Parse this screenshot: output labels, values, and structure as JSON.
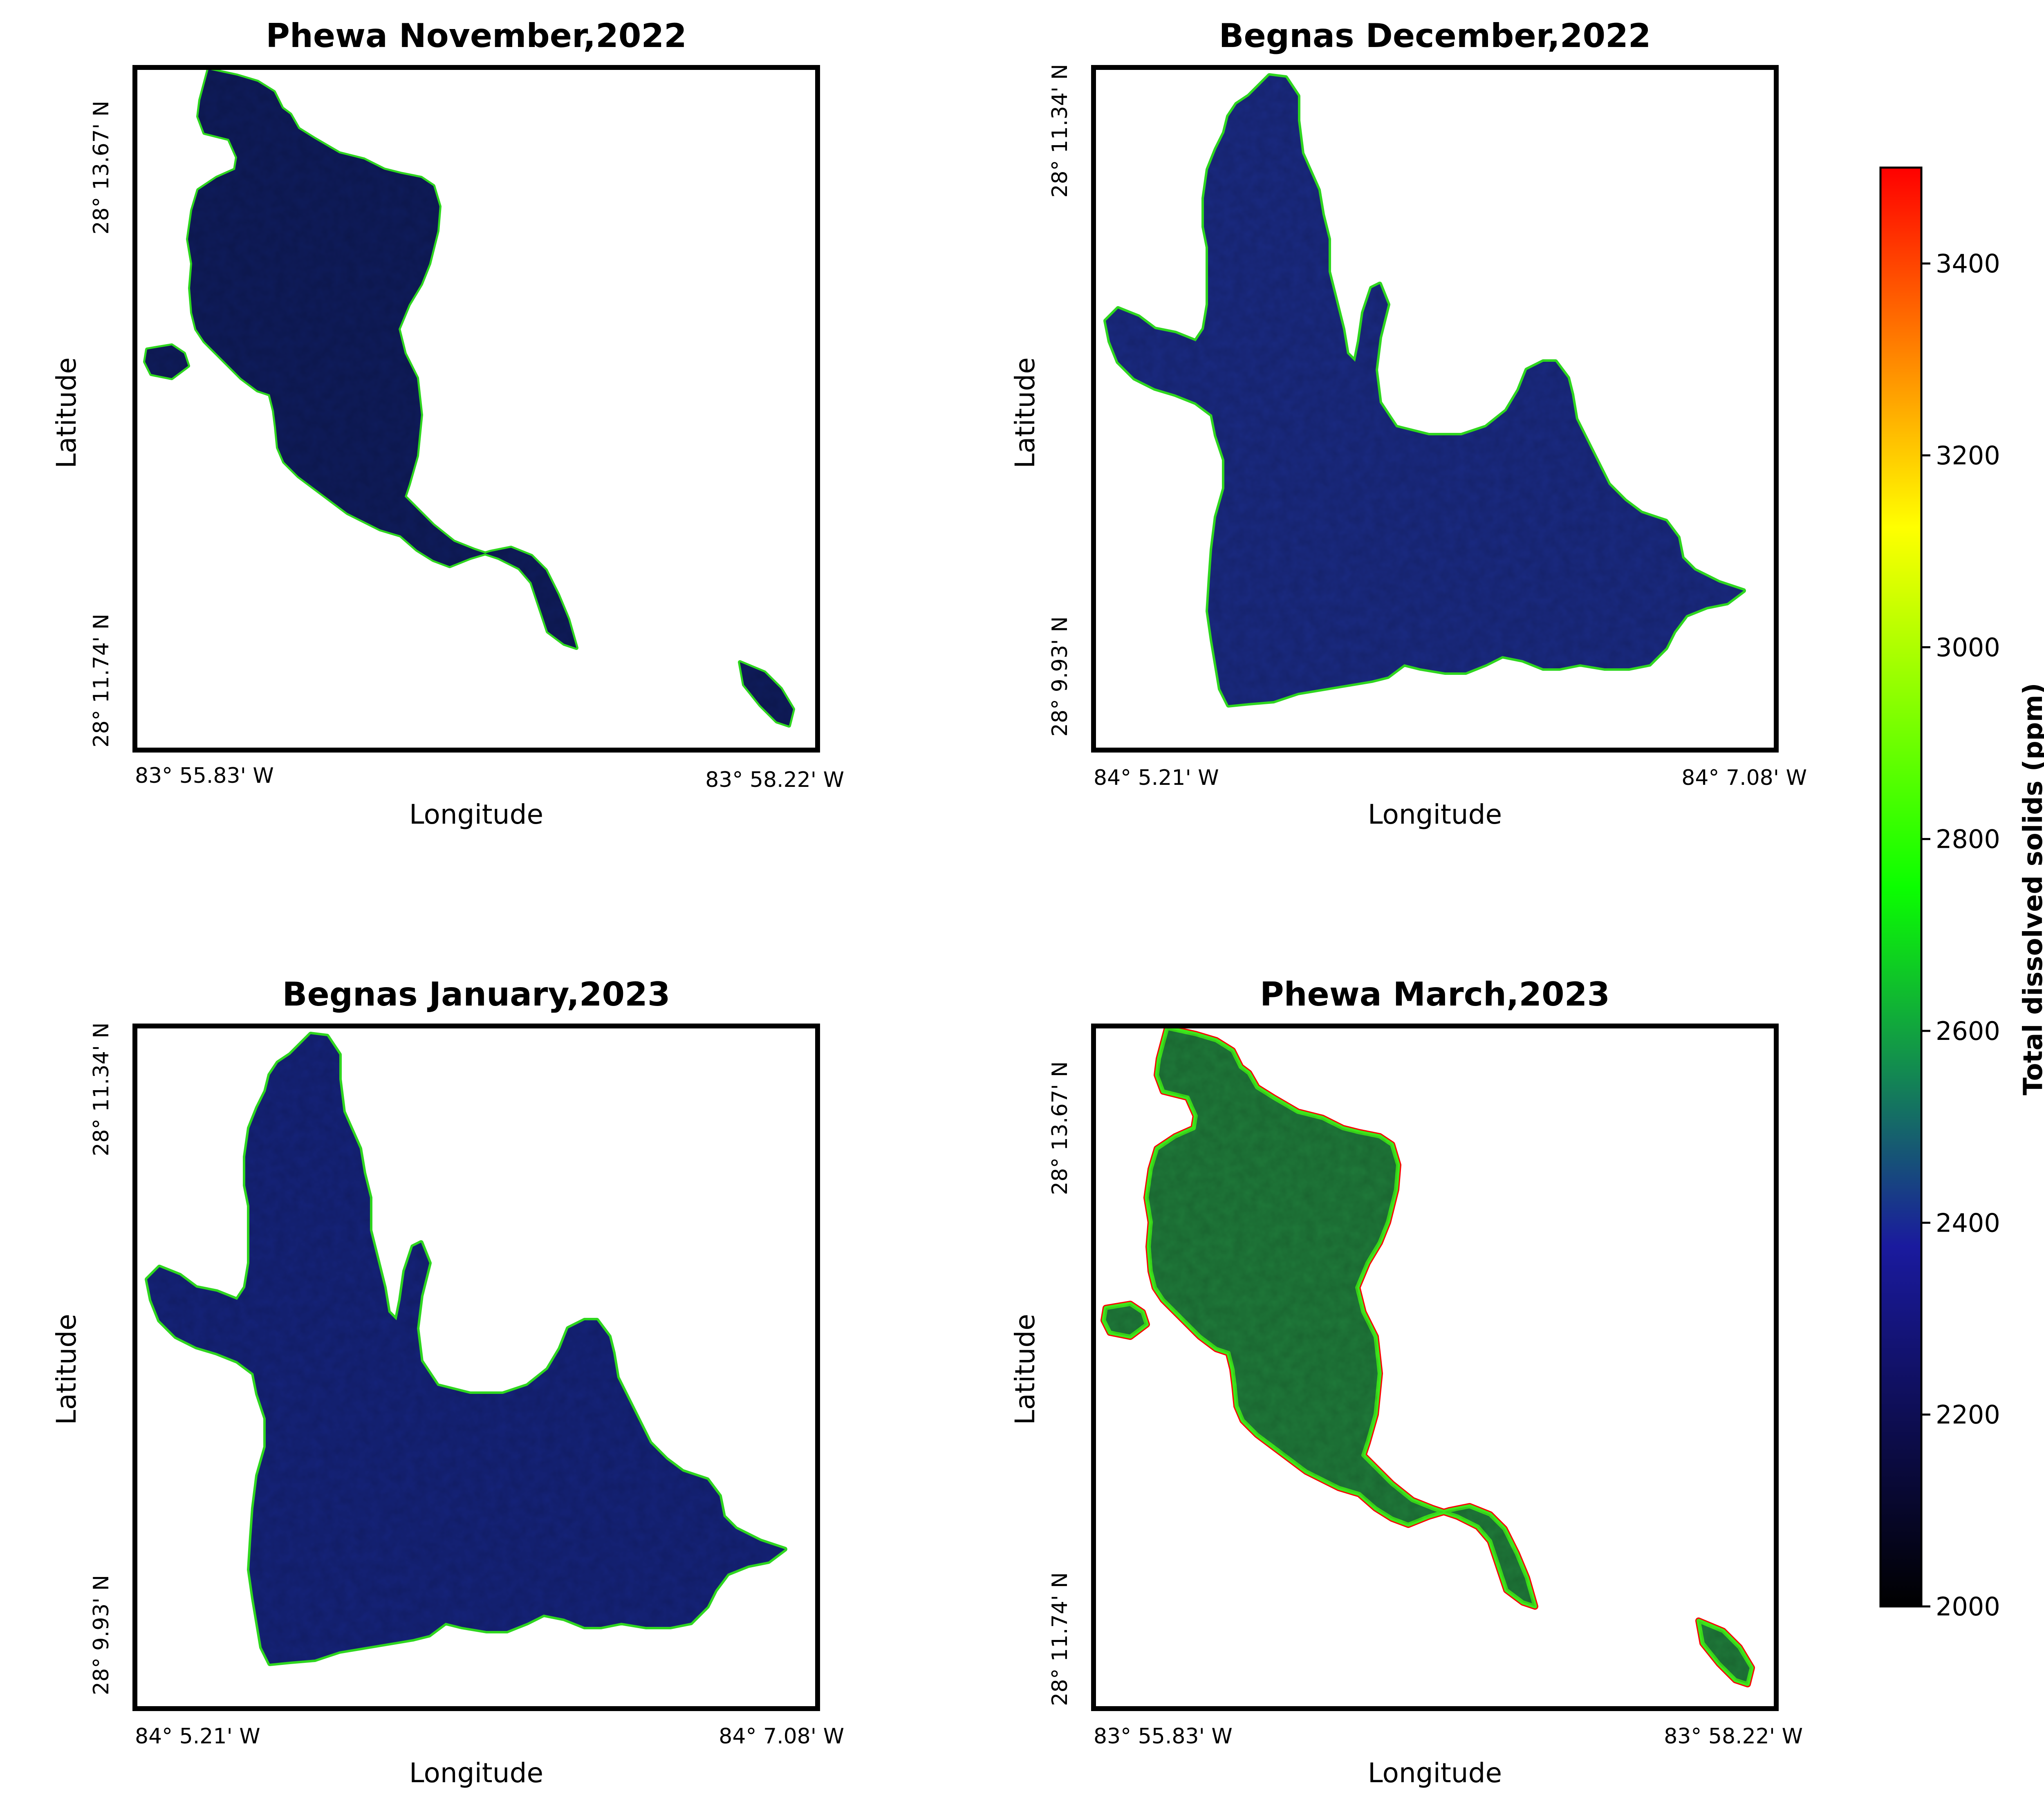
{
  "panels": [
    {
      "title": "Phewa November,2022",
      "xlabel": "Longitude",
      "ylabel": "Latitude",
      "xticks": [
        "83° 55.83' W",
        "83° 58.22' W"
      ],
      "yticks": [
        "28° 13.67' N",
        "28° 11.74' N"
      ],
      "lake": "phewa",
      "fill_color": "#0f1c5c",
      "edge_color": "#2fd61f"
    },
    {
      "title": "Begnas December,2022",
      "xlabel": "Longitude",
      "ylabel": "Latitude",
      "xticks": [
        "84° 5.21' W",
        "84° 7.08' W"
      ],
      "yticks": [
        "28° 11.34' N",
        "28° 9.93' N"
      ],
      "lake": "begnas",
      "fill_color": "#1a2a82",
      "edge_color": "#2fd61f"
    },
    {
      "title": "Begnas January,2023",
      "xlabel": "Longitude",
      "ylabel": "Latitude",
      "xticks": [
        "84° 5.21' W",
        "84° 7.08' W"
      ],
      "yticks": [
        "28° 11.34' N",
        "28° 9.93' N"
      ],
      "lake": "begnas",
      "fill_color": "#15237a",
      "edge_color": "#2fd61f"
    },
    {
      "title": "Phewa March,2023",
      "xlabel": "Longitude",
      "ylabel": "Latitude",
      "xticks": [
        "83° 55.83' W",
        "83° 58.22' W"
      ],
      "yticks": [
        "28° 13.67' N",
        "28° 11.74' N"
      ],
      "lake": "phewa",
      "fill_color": "#1f7a3a",
      "edge_color": "#3ee81c",
      "hot_edge_color": "#ff0000"
    }
  ],
  "colorbar": {
    "label": "Total dissolved solids (ppm)",
    "min": 2000,
    "max": 3500,
    "ticks": [
      "2000",
      "2200",
      "2400",
      "2600",
      "2800",
      "3000",
      "3200",
      "3400"
    ],
    "colormap": [
      "#000000",
      "#1a1a9e",
      "#0bff00",
      "#ffff00",
      "#ff0000"
    ]
  }
}
